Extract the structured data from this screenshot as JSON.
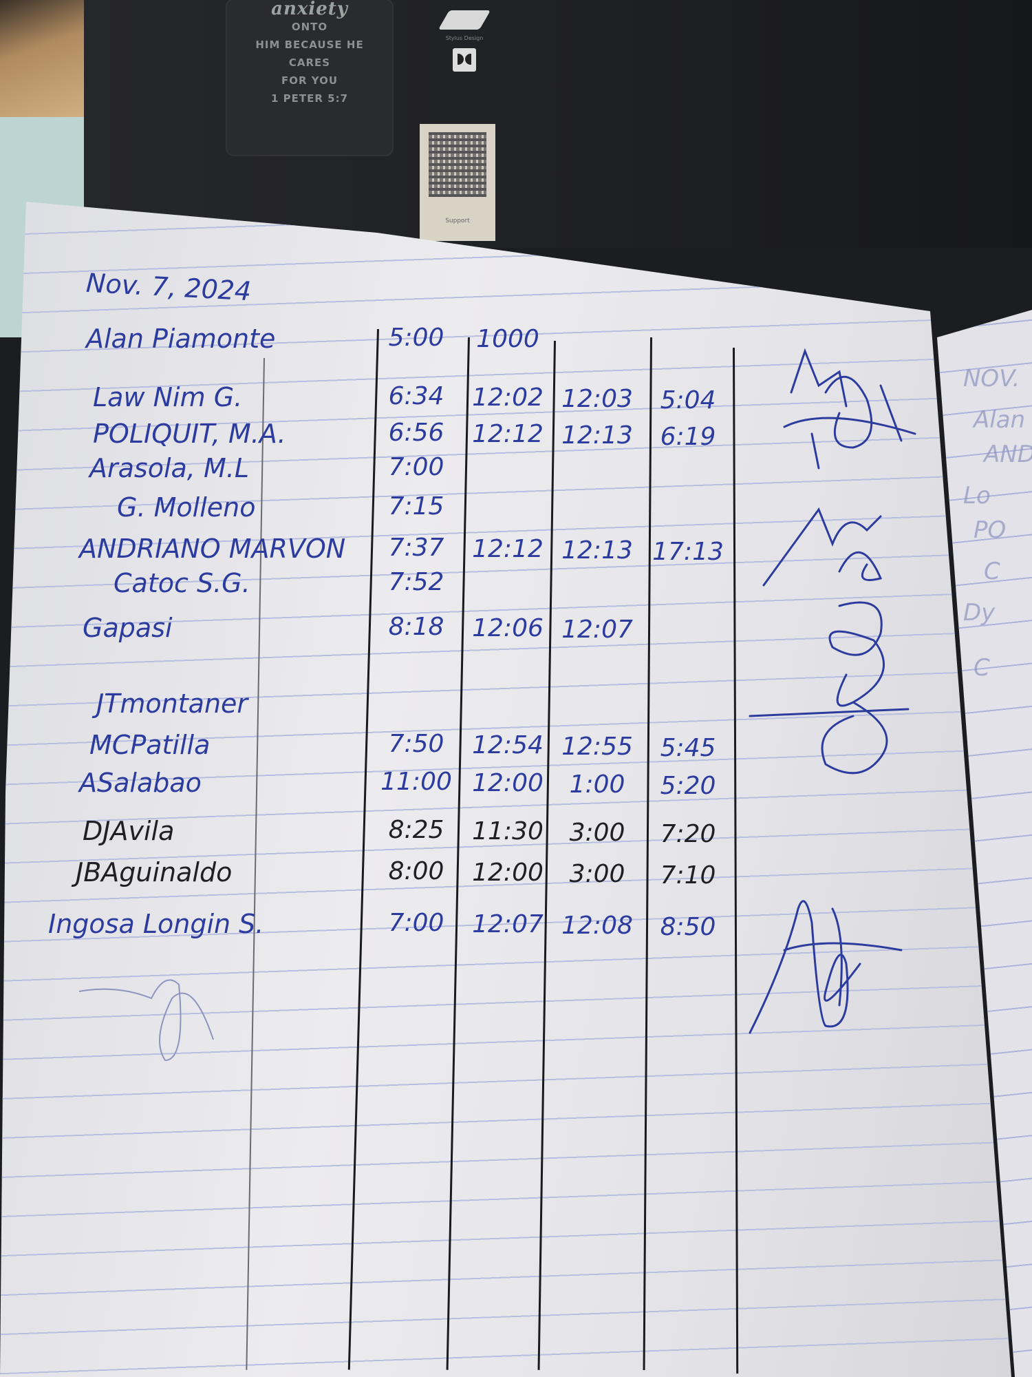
{
  "background": {
    "poster_lines": [
      "anxiety",
      "ONTO",
      "HIM BECAUSE HE",
      "CARES",
      "FOR YOU",
      "1 PETER 5:7"
    ],
    "sticker_label": "Stylus Design",
    "qr_label": "Support"
  },
  "log": {
    "date": "Nov. 7, 2024",
    "ink_colors": {
      "blue": "#2c3c9e",
      "black": "#1f1f25"
    },
    "rows": [
      {
        "name": "Alan Piamonte",
        "times": [
          "5:00",
          "1000",
          "",
          ""
        ],
        "ink": "blue"
      },
      {
        "name": "Law Nim G.",
        "times": [
          "6:34",
          "12:02",
          "12:03",
          "5:04"
        ],
        "ink": "blue"
      },
      {
        "name": "POLIQUIT, M.A.",
        "times": [
          "6:56",
          "12:12",
          "12:13",
          "6:19"
        ],
        "ink": "blue"
      },
      {
        "name": "Arasola, M.L",
        "times": [
          "7:00",
          "",
          "",
          ""
        ],
        "ink": "blue"
      },
      {
        "name": "G. Molleno",
        "times": [
          "7:15",
          "",
          "",
          ""
        ],
        "ink": "blue"
      },
      {
        "name": "ANDRIANO MARVON",
        "times": [
          "7:37",
          "12:12",
          "12:13",
          "17:13"
        ],
        "ink": "blue"
      },
      {
        "name": "Catoc S.G.",
        "times": [
          "7:52",
          "",
          "",
          ""
        ],
        "ink": "blue"
      },
      {
        "name": "Gapasi",
        "times": [
          "8:18",
          "12:06",
          "12:07",
          ""
        ],
        "ink": "blue"
      },
      {
        "name": "JTmontaner",
        "times": [
          "",
          "",
          "",
          ""
        ],
        "ink": "blue"
      },
      {
        "name": "MCPatilla",
        "times": [
          "7:50",
          "12:54",
          "12:55",
          "5:45"
        ],
        "ink": "blue"
      },
      {
        "name": "ASalabao",
        "times": [
          "11:00",
          "12:00",
          "1:00",
          "5:20"
        ],
        "ink": "blue"
      },
      {
        "name": "DJAvila",
        "times": [
          "8:25",
          "11:30",
          "3:00",
          "7:20"
        ],
        "ink": "black"
      },
      {
        "name": "JBAguinaldo",
        "times": [
          "8:00",
          "12:00",
          "3:00",
          "7:10"
        ],
        "ink": "black"
      },
      {
        "name": "Ingosa Longin S.",
        "times": [
          "7:00",
          "12:07",
          "12:08",
          "8:50"
        ],
        "ink": "blue"
      }
    ]
  },
  "right_page": {
    "lines": [
      "NOV.",
      "Alan",
      "AND",
      "Lo",
      "PO",
      "C",
      "Dy",
      "C"
    ]
  }
}
